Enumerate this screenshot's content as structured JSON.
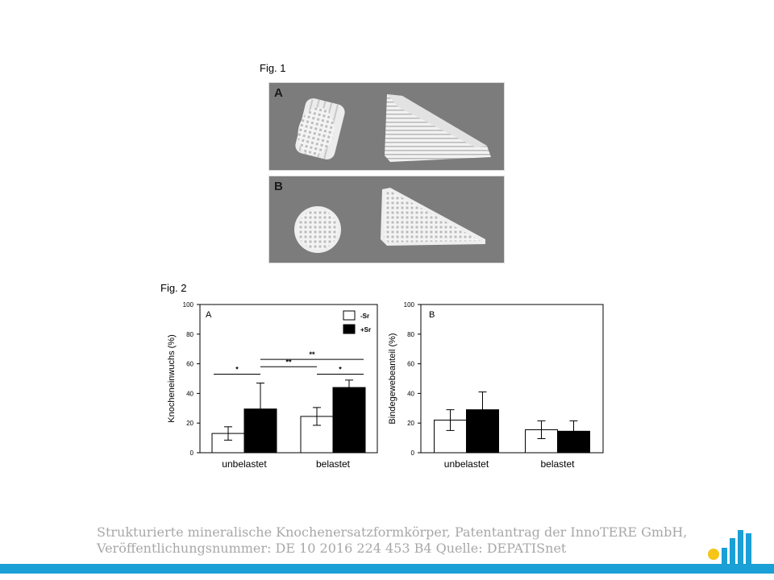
{
  "fig1": {
    "label": "Fig. 1",
    "panels": [
      {
        "letter": "A"
      },
      {
        "letter": "B"
      }
    ]
  },
  "fig2": {
    "label": "Fig. 2"
  },
  "chart_data": [
    {
      "type": "bar",
      "panel_letter": "A",
      "ylabel": "Knocheneinwuchs (%)",
      "xlabel": "",
      "categories": [
        "unbelastet",
        "belastet"
      ],
      "ylim": [
        0,
        100
      ],
      "yticks": [
        0,
        20,
        40,
        60,
        80,
        100
      ],
      "legend_position": "top-right",
      "series": [
        {
          "name": "-Sr",
          "color": "#ffffff",
          "values": [
            13,
            24.5
          ],
          "errors": [
            4.5,
            6
          ]
        },
        {
          "name": "+Sr",
          "color": "#000000",
          "values": [
            29.5,
            44
          ],
          "errors": [
            17.5,
            5
          ]
        }
      ],
      "significance": [
        {
          "label": "*"
        },
        {
          "label": "**"
        },
        {
          "label": "**"
        },
        {
          "label": "*"
        }
      ]
    },
    {
      "type": "bar",
      "panel_letter": "B",
      "ylabel": "Bindegewebeanteil (%)",
      "xlabel": "",
      "categories": [
        "unbelastet",
        "belastet"
      ],
      "ylim": [
        0,
        100
      ],
      "yticks": [
        0,
        20,
        40,
        60,
        80,
        100
      ],
      "series": [
        {
          "name": "-Sr",
          "color": "#ffffff",
          "values": [
            22,
            15.5
          ],
          "errors": [
            7,
            6
          ]
        },
        {
          "name": "+Sr",
          "color": "#000000",
          "values": [
            29,
            14.5
          ],
          "errors": [
            12,
            7
          ]
        }
      ]
    }
  ],
  "footer": {
    "line1": "Strukturierte mineralische Knochenersatzformkörper, Patentantrag der InnoTERE GmbH,",
    "line2": "Veröffentlichungsnummer: DE 10 2016 224 453  B4 Quelle: DEPATISnet",
    "accent": "#1a9fd6",
    "logo_colors": [
      "#1a9fd6",
      "#f5c518"
    ]
  }
}
